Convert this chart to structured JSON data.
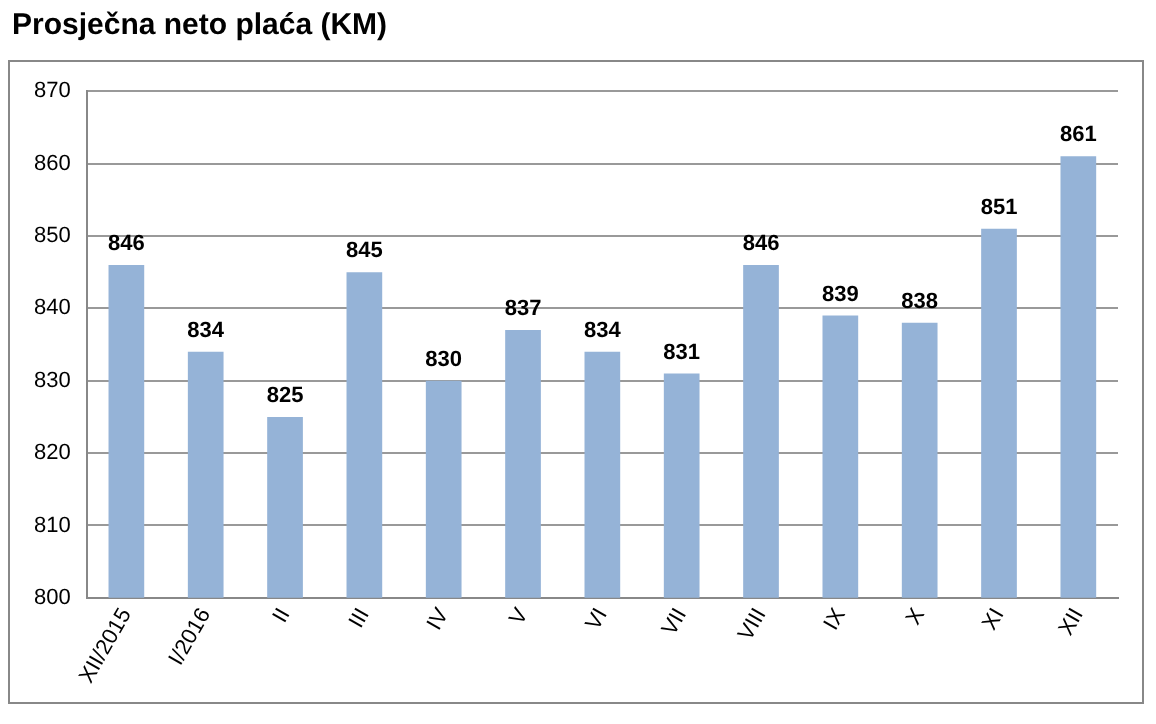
{
  "chart_data": {
    "type": "bar",
    "title": "Prosječna neto plaća (KM)",
    "categories": [
      "XII/2015",
      "I/2016",
      "II",
      "III",
      "IV",
      "V",
      "VI",
      "VII",
      "VIII",
      "IX",
      "X",
      "XI",
      "XII"
    ],
    "values": [
      846,
      834,
      825,
      845,
      830,
      837,
      834,
      831,
      846,
      839,
      838,
      851,
      861
    ],
    "color": "#95b3d7",
    "ylim": [
      800,
      870
    ],
    "yticks": [
      800,
      810,
      820,
      830,
      840,
      850,
      860,
      870
    ],
    "grid": "y",
    "data_labels": true,
    "legend": false
  }
}
